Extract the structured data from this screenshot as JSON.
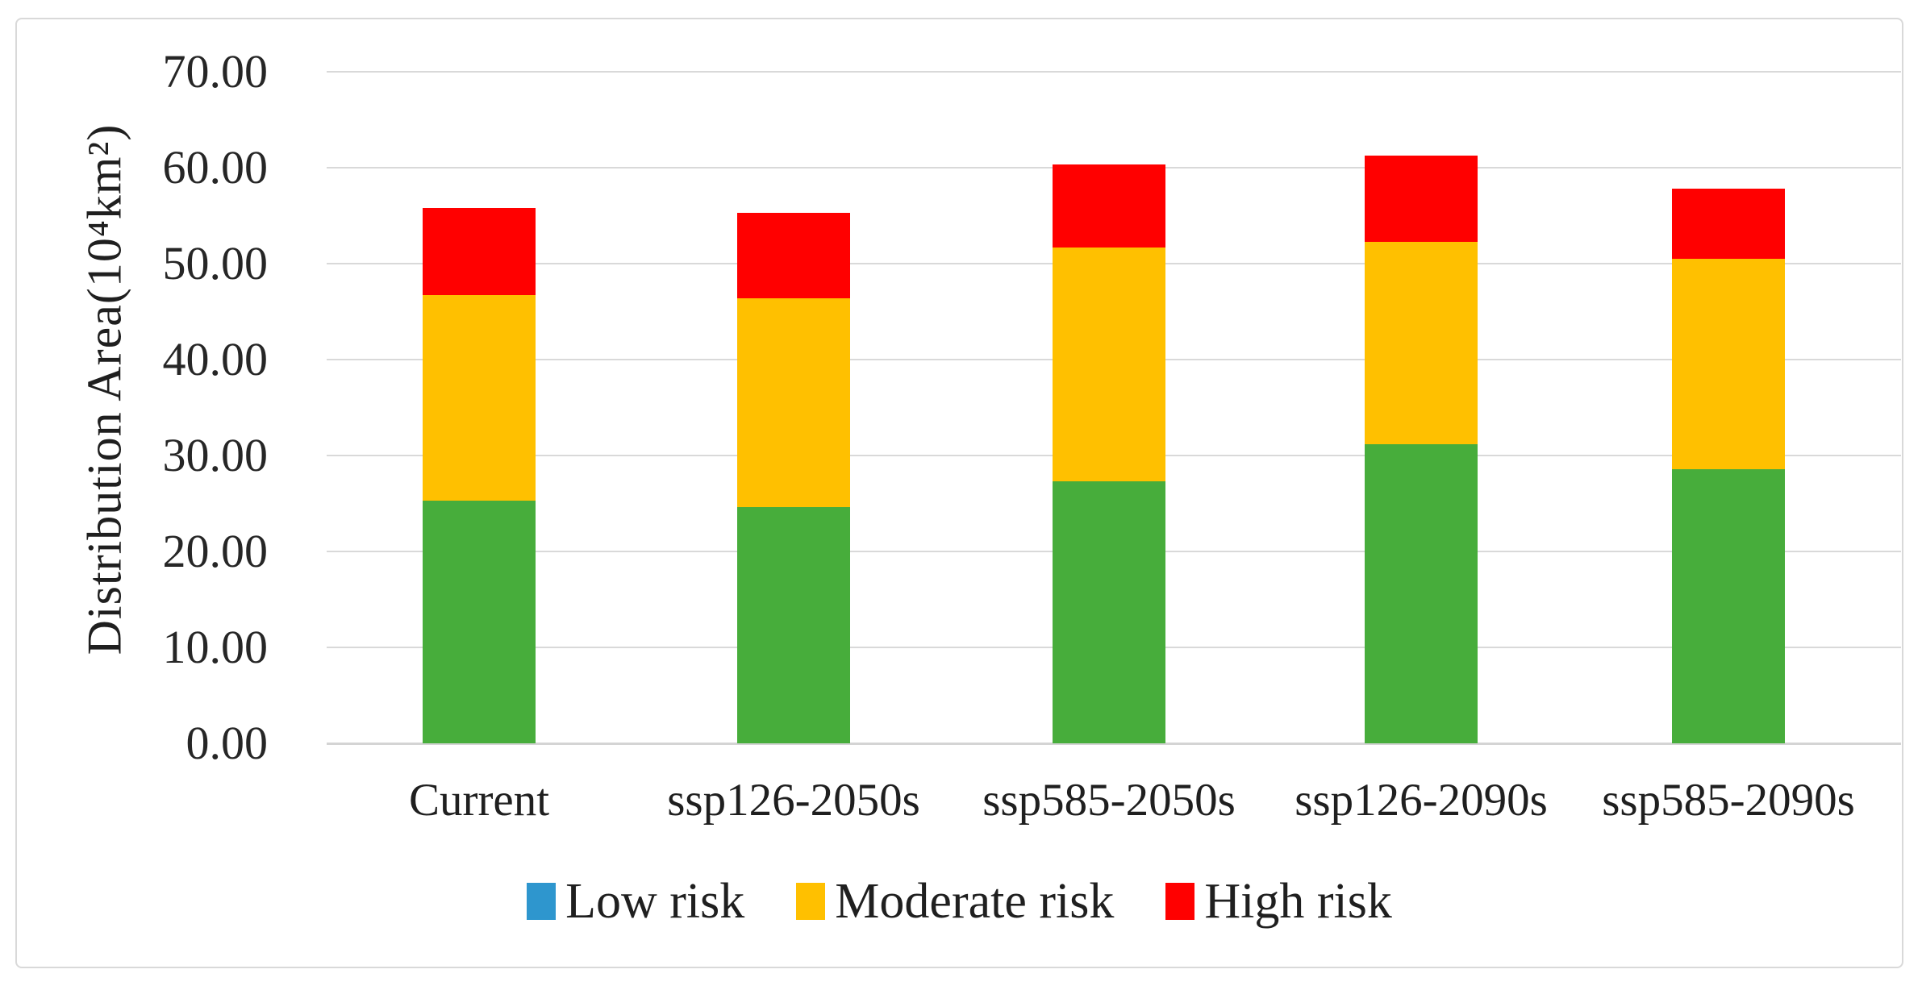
{
  "figure": {
    "background_color": "#ffffff",
    "frame_border_color": "#d9d9d9",
    "gridline_color": "#d9d9d9",
    "text_color": "#1f1f1f"
  },
  "chart_data": {
    "type": "bar",
    "stacked": true,
    "title": "",
    "xlabel": "",
    "ylabel": "Distribution Area(10⁴km²)",
    "ylim": [
      0,
      70
    ],
    "ytick_step": 10,
    "ytick_labels": [
      "70.00",
      "60.00",
      "50.00",
      "40.00",
      "30.00",
      "20.00",
      "10.00",
      "0.00"
    ],
    "grid": "horizontal",
    "legend_position": "bottom-center",
    "categories": [
      "Current",
      "ssp126-2050s",
      "ssp585-2050s",
      "ssp126-2090s",
      "ssp585-2090s"
    ],
    "series": [
      {
        "name": "Low risk",
        "legend_color": "#2e96ce",
        "bar_color": "#47ad3b",
        "values": [
          25.3,
          24.6,
          27.3,
          31.2,
          28.6
        ]
      },
      {
        "name": "Moderate risk",
        "legend_color": "#ffc000",
        "bar_color": "#ffc000",
        "values": [
          21.4,
          21.8,
          24.4,
          21.1,
          21.9
        ]
      },
      {
        "name": "High risk",
        "legend_color": "#ff0000",
        "bar_color": "#ff0000",
        "values": [
          9.1,
          8.9,
          8.6,
          9.0,
          7.3
        ]
      }
    ],
    "stack_totals": [
      55.8,
      55.3,
      60.3,
      61.3,
      57.8
    ]
  }
}
